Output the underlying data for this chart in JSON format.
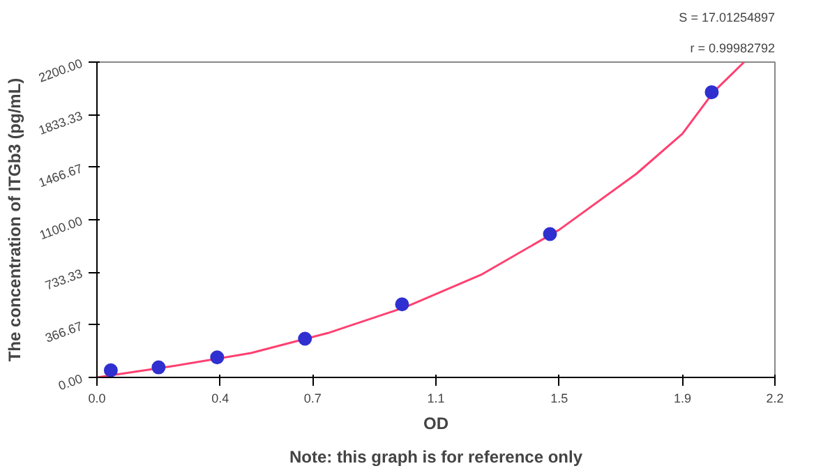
{
  "chart_data": {
    "type": "scatter",
    "xlabel": "OD",
    "ylabel": "The concentration of ITGb3 (pg/mL)",
    "annotations": [
      "S = 17.01254897",
      "r = 0.99982792",
      "Note: this graph is for reference only"
    ],
    "xlim": [
      0,
      2.2
    ],
    "ylim": [
      0,
      2200
    ],
    "xticks": [
      {
        "value": 0,
        "label": "0.0"
      },
      0.4,
      0.7,
      1.1,
      1.5,
      1.9,
      2.2
    ],
    "yticks": [
      {
        "value": 0,
        "label": "0.00"
      },
      {
        "value": 366.67,
        "label": "366.67"
      },
      {
        "value": 733.33,
        "label": "733.33"
      },
      {
        "value": 1100,
        "label": "1100.00"
      },
      {
        "value": 1466.67,
        "label": "1466.67"
      },
      {
        "value": 1833.33,
        "label": "1833.33"
      },
      {
        "value": 2200,
        "label": "2200.00"
      }
    ],
    "grid": false,
    "series": [
      {
        "type": "line",
        "color": "#ff4070",
        "x": [
          0.0,
          0.25,
          0.5,
          0.75,
          1.0,
          1.25,
          1.5,
          1.75,
          1.9,
          2.0,
          2.1
        ],
        "values": [
          0,
          80,
          170,
          310,
          490,
          720,
          1030,
          1420,
          1700,
          1990,
          2200
        ]
      },
      {
        "marker": "circle",
        "color": "#3030d0",
        "x": [
          0.045,
          0.2,
          0.39,
          0.675,
          0.99,
          1.47,
          1.995
        ],
        "values": [
          50,
          70,
          140,
          270,
          510,
          1000,
          1990
        ]
      }
    ]
  }
}
